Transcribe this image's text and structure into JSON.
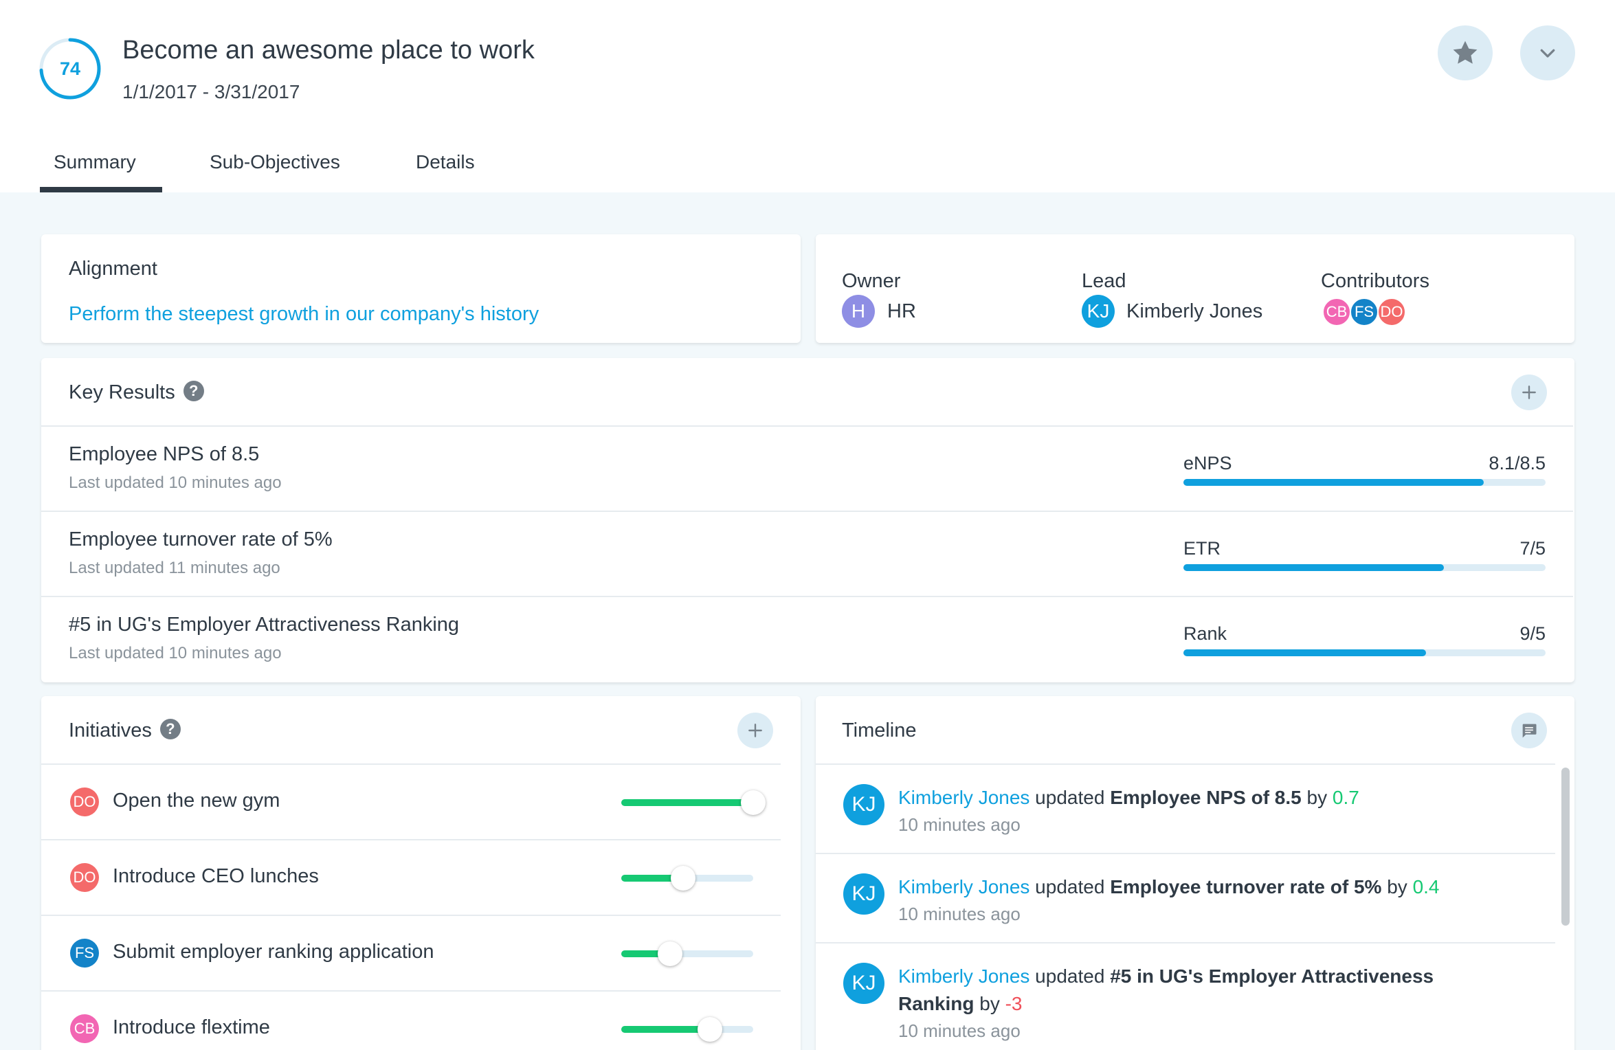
{
  "objective": {
    "score": "74",
    "score_percent": 74,
    "title": "Become an awesome place to work",
    "dates": "1/1/2017 - 3/31/2017"
  },
  "header_actions": {
    "favorite_icon": "star-icon",
    "menu_icon": "chevron-down-icon"
  },
  "tabs": [
    {
      "label": "Summary",
      "active": true
    },
    {
      "label": "Sub-Objectives",
      "active": false
    },
    {
      "label": "Details",
      "active": false
    }
  ],
  "alignment": {
    "title": "Alignment",
    "link_text": "Perform the steepest growth in our company's history"
  },
  "people": {
    "owner_label": "Owner",
    "owner": {
      "initials": "H",
      "name": "HR",
      "color": "#8e8ee4"
    },
    "lead_label": "Lead",
    "lead": {
      "initials": "KJ",
      "name": "Kimberly Jones",
      "color": "#0fa0de"
    },
    "contributors_label": "Contributors",
    "contributors": [
      {
        "initials": "CB",
        "color": "#f266b3"
      },
      {
        "initials": "FS",
        "color": "#1383c8"
      },
      {
        "initials": "DO",
        "color": "#f46a6a"
      }
    ]
  },
  "key_results": {
    "title": "Key Results",
    "help_icon": "help-icon",
    "add_icon": "plus-icon",
    "items": [
      {
        "name": "Employee NPS of 8.5",
        "updated": "Last updated 10 minutes ago",
        "metric": "eNPS",
        "value": "8.1/8.5",
        "progress": 0.83
      },
      {
        "name": "Employee turnover rate of 5%",
        "updated": "Last updated 11 minutes ago",
        "metric": "ETR",
        "value": "7/5",
        "progress": 0.72
      },
      {
        "name": "#5 in UG's Employer Attractiveness Ranking",
        "updated": "Last updated 10 minutes ago",
        "metric": "Rank",
        "value": "9/5",
        "progress": 0.67
      }
    ]
  },
  "initiatives": {
    "title": "Initiatives",
    "help_icon": "help-icon",
    "add_icon": "plus-icon",
    "items": [
      {
        "initials": "DO",
        "color": "#f46a6a",
        "name": "Open the new gym",
        "progress": 1.0
      },
      {
        "initials": "DO",
        "color": "#f46a6a",
        "name": "Introduce CEO lunches",
        "progress": 0.47
      },
      {
        "initials": "FS",
        "color": "#1383c8",
        "name": "Submit employer ranking application",
        "progress": 0.37
      },
      {
        "initials": "CB",
        "color": "#f266b3",
        "name": "Introduce flextime",
        "progress": 0.67
      }
    ]
  },
  "timeline": {
    "title": "Timeline",
    "comment_icon": "comment-icon",
    "items": [
      {
        "initials": "KJ",
        "user": "Kimberly Jones",
        "verb": " updated ",
        "target": "Employee NPS of 8.5",
        "by_word": " by ",
        "delta": "0.7",
        "delta_sign": "positive",
        "time": "10 minutes ago"
      },
      {
        "initials": "KJ",
        "user": "Kimberly Jones",
        "verb": " updated ",
        "target": "Employee turnover rate of 5%",
        "by_word": " by ",
        "delta": "0.4",
        "delta_sign": "positive",
        "time": "10 minutes ago"
      },
      {
        "initials": "KJ",
        "user": "Kimberly Jones",
        "verb": " updated ",
        "target": "#5 in UG's Employer Attractiveness Ranking",
        "by_word": " by ",
        "delta": "-3",
        "delta_sign": "negative",
        "time": "10 minutes ago"
      }
    ]
  },
  "colors": {
    "accent_blue": "#0fa0de",
    "progress_green": "#16c973",
    "negative_red": "#f0505a"
  }
}
